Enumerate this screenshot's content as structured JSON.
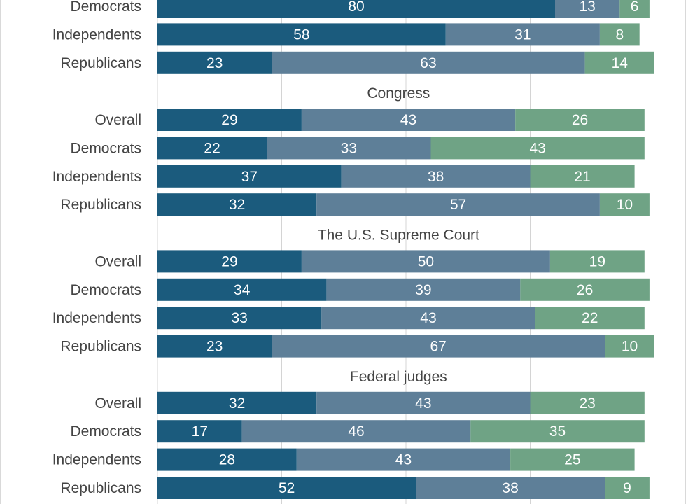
{
  "chart_data": {
    "type": "bar",
    "orientation": "horizontal",
    "stacked": true,
    "grid": true,
    "xlim": [
      0,
      100
    ],
    "colors": [
      "#1b5b7d",
      "#5e7f98",
      "#6fa385"
    ],
    "groups": [
      {
        "title": "",
        "rows": [
          {
            "label": "Democrats",
            "values": [
              80,
              13,
              6
            ]
          },
          {
            "label": "Independents",
            "values": [
              58,
              31,
              8
            ]
          },
          {
            "label": "Republicans",
            "values": [
              23,
              63,
              14
            ]
          }
        ]
      },
      {
        "title": "Congress",
        "rows": [
          {
            "label": "Overall",
            "values": [
              29,
              43,
              26
            ]
          },
          {
            "label": "Democrats",
            "values": [
              22,
              33,
              43
            ]
          },
          {
            "label": "Independents",
            "values": [
              37,
              38,
              21
            ]
          },
          {
            "label": "Republicans",
            "values": [
              32,
              57,
              10
            ]
          }
        ]
      },
      {
        "title": "The U.S. Supreme Court",
        "rows": [
          {
            "label": "Overall",
            "values": [
              29,
              50,
              19
            ]
          },
          {
            "label": "Democrats",
            "values": [
              34,
              39,
              26
            ]
          },
          {
            "label": "Independents",
            "values": [
              33,
              43,
              22
            ]
          },
          {
            "label": "Republicans",
            "values": [
              23,
              67,
              10
            ]
          }
        ]
      },
      {
        "title": "Federal judges",
        "rows": [
          {
            "label": "Overall",
            "values": [
              32,
              43,
              23
            ]
          },
          {
            "label": "Democrats",
            "values": [
              17,
              46,
              35
            ]
          },
          {
            "label": "Independents",
            "values": [
              28,
              43,
              25
            ]
          },
          {
            "label": "Republicans",
            "values": [
              52,
              38,
              9
            ]
          }
        ]
      }
    ]
  }
}
